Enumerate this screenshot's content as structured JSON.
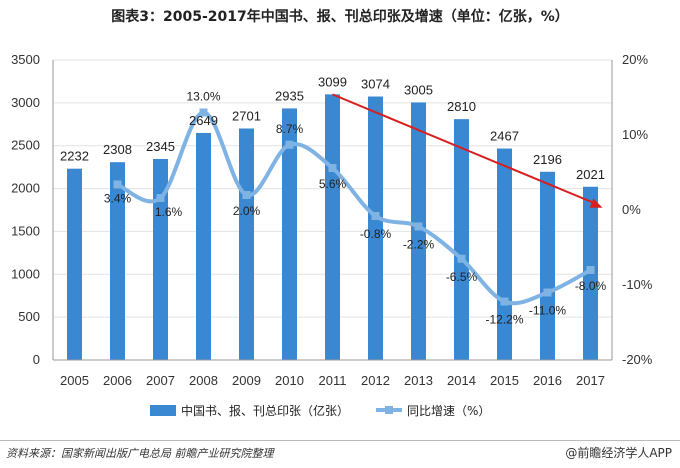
{
  "title": "图表3：2005-2017年中国书、报、刊总印张及增速（单位：亿张，%）",
  "footer": {
    "source": "资料来源：国家新闻出版广电总局  前瞻产业研究院整理",
    "brand": "@前瞻经济学人APP"
  },
  "colors": {
    "bar": "#3a87d2",
    "line": "#7fb3e4",
    "arrow": "#d81e1e"
  },
  "chart_data": {
    "type": "bar",
    "categories": [
      "2005",
      "2006",
      "2007",
      "2008",
      "2009",
      "2010",
      "2011",
      "2012",
      "2013",
      "2014",
      "2015",
      "2016",
      "2017"
    ],
    "series": [
      {
        "name": "中国书、报、刊总印张（亿张）",
        "type": "bar",
        "axis": "left",
        "values": [
          2232,
          2308,
          2345,
          2649,
          2701,
          2935,
          3099,
          3074,
          3005,
          2810,
          2467,
          2196,
          2021
        ]
      },
      {
        "name": "同比增速（%）",
        "type": "line",
        "axis": "right",
        "values": [
          null,
          3.4,
          1.6,
          13.0,
          2.0,
          8.7,
          5.6,
          -0.8,
          -2.2,
          -6.5,
          -12.2,
          -11.0,
          -8.0
        ],
        "labels": [
          null,
          "3.4%",
          "1.6%",
          "13.0%",
          "2.0%",
          "8.7%",
          "5.6%",
          "-0.8%",
          "-2.2%",
          "-6.5%",
          "-12.2%",
          "-11.0%",
          "-8.0%"
        ]
      }
    ],
    "y_left": {
      "min": 0,
      "max": 3500,
      "ticks": [
        "0",
        "500",
        "1000",
        "1500",
        "2000",
        "2500",
        "3000",
        "3500"
      ]
    },
    "y_right": {
      "min": -20,
      "max": 20,
      "ticks": [
        "-20%",
        "-10%",
        "0%",
        "10%",
        "20%"
      ]
    },
    "trend_arrow": {
      "from_category": "2011",
      "to_category": "2017",
      "from_value": 3099,
      "to_value": 0.3
    },
    "legend": [
      "中国书、报、刊总印张（亿张）",
      "同比增速（%）"
    ]
  }
}
